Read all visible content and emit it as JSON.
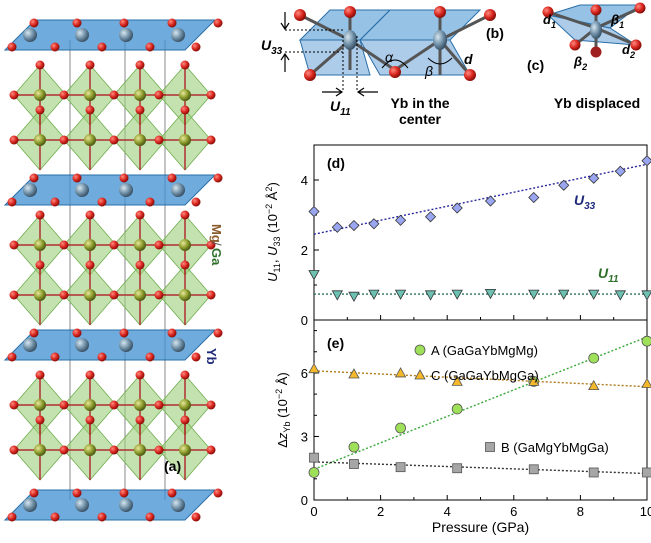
{
  "labels": {
    "panel_a": "(a)",
    "panel_b": "(b)",
    "panel_c": "(c)",
    "panel_d": "(d)",
    "panel_e": "(e)",
    "mg": "Mg",
    "ga": "Ga",
    "yb_side": "Yb",
    "u33": "U",
    "u33_sub": "33",
    "u11": "U",
    "u11_sub": "11",
    "alpha": "α",
    "beta": "β",
    "d": "d",
    "d1": "d",
    "d1_sub": "1",
    "d2": "d",
    "d2_sub": "2",
    "beta1": "β",
    "beta1_sub": "1",
    "beta2": "β",
    "beta2_sub": "2",
    "yb_center_1": "Yb in the",
    "yb_center_2": "center",
    "yb_displaced": "Yb displaced"
  },
  "colors": {
    "oxygen": "#d7261e",
    "yb": "#6f8fa6",
    "mgga": "#8a9a2a",
    "octa_blue": "#3f8fd0",
    "octa_green": "#9ccf7a",
    "u33_marker": "#9aa6f0",
    "u11_marker": "#6cc1b2",
    "a_marker": "#9ee05a",
    "c_marker": "#f5b82a",
    "b_marker": "#a6a6a6",
    "label_navy": "#1f2a7a",
    "label_green": "#2e6f2a",
    "label_brown": "#8a5a2a"
  },
  "chart_data": [
    {
      "type": "scatter",
      "panel": "(d)",
      "ylabel": "U11, U33 (10⁻² Å²)",
      "xlim": [
        0,
        10
      ],
      "ylim": [
        0,
        5
      ],
      "yticks": [
        0,
        2,
        4
      ],
      "grid": false,
      "series": [
        {
          "name": "U33",
          "marker": "diamond",
          "x": [
            0,
            0.7,
            1.2,
            1.8,
            2.6,
            3.5,
            4.3,
            5.3,
            6.6,
            7.5,
            8.4,
            9.2,
            10
          ],
          "y": [
            3.1,
            2.65,
            2.7,
            2.75,
            2.85,
            2.95,
            3.2,
            3.4,
            3.5,
            3.85,
            4.05,
            4.25,
            4.55
          ],
          "fit": [
            [
              0,
              2.45
            ],
            [
              10,
              4.45
            ]
          ]
        },
        {
          "name": "U11",
          "marker": "triangle-down",
          "x": [
            0,
            0.7,
            1.2,
            1.8,
            2.6,
            3.5,
            4.3,
            5.3,
            6.6,
            7.5,
            8.4,
            9.2,
            10
          ],
          "y": [
            1.3,
            0.72,
            0.68,
            0.74,
            0.74,
            0.72,
            0.74,
            0.76,
            0.74,
            0.74,
            0.74,
            0.72,
            0.72
          ],
          "fit": [
            [
              0,
              0.74
            ],
            [
              10,
              0.74
            ]
          ]
        }
      ]
    },
    {
      "type": "scatter",
      "panel": "(e)",
      "xlabel": "Pressure (GPa)",
      "ylabel": "Δz_Yb (10⁻² Å)",
      "xlim": [
        0,
        10
      ],
      "ylim": [
        0,
        8.5
      ],
      "xticks": [
        0,
        2,
        4,
        6,
        8,
        10
      ],
      "yticks": [
        0,
        3,
        6
      ],
      "grid": false,
      "legend": [
        "A (GaGaYbMgMg)",
        "C (GaGaYbMgGa)",
        "B (GaMgYbMgGa)"
      ],
      "series": [
        {
          "name": "A (GaGaYbMgMg)",
          "marker": "circle",
          "x": [
            0,
            1.2,
            2.6,
            4.3,
            6.6,
            8.4,
            10
          ],
          "y": [
            1.3,
            2.5,
            3.4,
            4.3,
            5.6,
            6.7,
            7.5
          ],
          "fit": [
            [
              0,
              1.45
            ],
            [
              10,
              7.7
            ]
          ]
        },
        {
          "name": "C (GaGaYbMgGa)",
          "marker": "triangle-up",
          "x": [
            0,
            1.2,
            2.6,
            4.3,
            6.6,
            8.4,
            10
          ],
          "y": [
            6.2,
            5.95,
            6.0,
            5.6,
            5.6,
            5.4,
            5.5
          ],
          "fit": [
            [
              0,
              6.1
            ],
            [
              10,
              5.35
            ]
          ]
        },
        {
          "name": "B (GaMgYbMgGa)",
          "marker": "square",
          "x": [
            0,
            1.2,
            2.6,
            4.3,
            6.6,
            8.4,
            10
          ],
          "y": [
            2.0,
            1.7,
            1.55,
            1.5,
            1.45,
            1.3,
            1.3
          ],
          "fit": [
            [
              0,
              1.8
            ],
            [
              10,
              1.25
            ]
          ]
        }
      ]
    }
  ]
}
